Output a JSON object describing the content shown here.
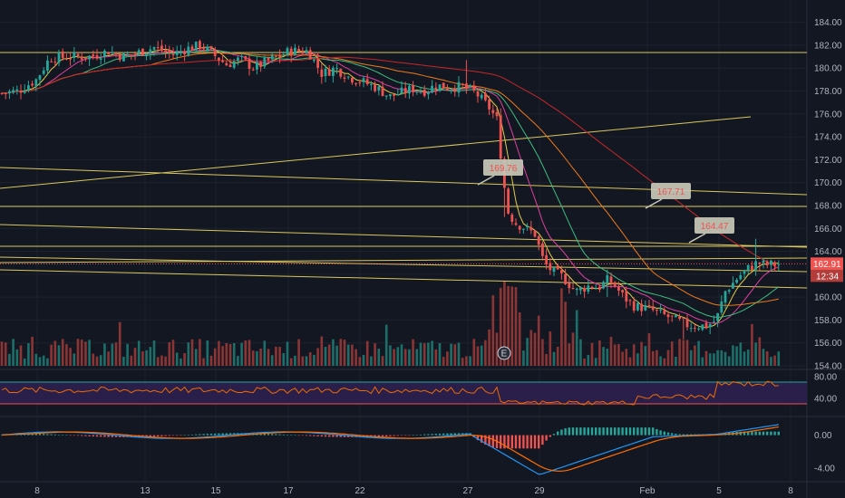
{
  "colors": {
    "background": "#131722",
    "grid": "#1e222d",
    "up": "#26a69a",
    "down": "#ef5350",
    "vol_up": "#1d6f6a",
    "vol_down": "#8c3535",
    "trendline": "#d8c75e",
    "ma_fast": "#e0cc4a",
    "ma_mid": "#e040a0",
    "ma_green": "#3fbf7f",
    "ma_orange": "#ef7a1a",
    "ma_long": "#c62828",
    "rsi_line": "#ef6c00",
    "rsi_band": "#2a1e4a",
    "rsi_upper": "#26a69a",
    "rsi_lower": "#ef5350",
    "macd_line": "#2196f3",
    "signal_line": "#ff6d00",
    "price_label_bg": "#ef5350",
    "annotation_bg": "#c8c8b8"
  },
  "chart_data": [
    {
      "id": "price",
      "type": "candlestick",
      "y_ticks": [
        "154.00",
        "156.00",
        "158.00",
        "160.00",
        "162.00",
        "164.00",
        "166.00",
        "168.00",
        "170.00",
        "172.00",
        "174.00",
        "176.00",
        "178.00",
        "180.00",
        "182.00",
        "184.00"
      ],
      "ylim": [
        154,
        185
      ],
      "x_ticks": [
        "8",
        "13",
        "15",
        "17",
        "22",
        "27",
        "29",
        "Feb",
        "5",
        "8"
      ],
      "current_price": "162.91",
      "countdown": "12:34",
      "annotations": [
        "169.76",
        "167.71",
        "164.47"
      ],
      "earnings_marker": "E",
      "close_anchors": [
        [
          0,
          177.8
        ],
        [
          20,
          178.0
        ],
        [
          40,
          179.0
        ],
        [
          55,
          180.9
        ],
        [
          80,
          181.0
        ],
        [
          100,
          181.0
        ],
        [
          120,
          181.5
        ],
        [
          135,
          181.0
        ],
        [
          150,
          181.3
        ],
        [
          170,
          181.8
        ],
        [
          190,
          181.2
        ],
        [
          210,
          181.8
        ],
        [
          222,
          182.0
        ],
        [
          235,
          181.2
        ],
        [
          250,
          180.3
        ],
        [
          265,
          180.8
        ],
        [
          280,
          180.0
        ],
        [
          300,
          180.8
        ],
        [
          320,
          181.5
        ],
        [
          340,
          181.5
        ],
        [
          355,
          179.5
        ],
        [
          370,
          180.0
        ],
        [
          385,
          179.2
        ],
        [
          400,
          178.8
        ],
        [
          415,
          178.3
        ],
        [
          430,
          177.5
        ],
        [
          440,
          177.8
        ],
        [
          455,
          178.2
        ],
        [
          470,
          178.0
        ],
        [
          480,
          178.5
        ],
        [
          495,
          178.3
        ],
        [
          510,
          178.4
        ],
        [
          525,
          177.8
        ],
        [
          540,
          176.5
        ],
        [
          548,
          175.5
        ],
        [
          556,
          169.8
        ],
        [
          560,
          167.5
        ],
        [
          568,
          166.5
        ],
        [
          580,
          166.0
        ],
        [
          590,
          165.5
        ],
        [
          600,
          163.0
        ],
        [
          610,
          162.2
        ],
        [
          620,
          161.8
        ],
        [
          635,
          160.5
        ],
        [
          650,
          161.0
        ],
        [
          660,
          160.8
        ],
        [
          670,
          161.5
        ],
        [
          678,
          161.0
        ],
        [
          688,
          160.0
        ],
        [
          700,
          159.2
        ],
        [
          715,
          159.0
        ],
        [
          730,
          158.5
        ],
        [
          745,
          158.0
        ],
        [
          760,
          157.5
        ],
        [
          780,
          157.5
        ],
        [
          790,
          158.0
        ],
        [
          800,
          160.5
        ],
        [
          815,
          161.8
        ],
        [
          825,
          162.5
        ],
        [
          835,
          163.0
        ],
        [
          845,
          162.8
        ],
        [
          858,
          162.9
        ]
      ]
    },
    {
      "id": "rsi",
      "type": "line",
      "y_ticks": [
        "80.00",
        "40.00"
      ],
      "ylim": [
        20,
        85
      ],
      "upper_band": 70,
      "lower_band": 30
    },
    {
      "id": "macd",
      "type": "line",
      "y_ticks": [
        "0.00",
        "-4.00"
      ],
      "ylim": [
        -5.2,
        1.6
      ]
    }
  ]
}
